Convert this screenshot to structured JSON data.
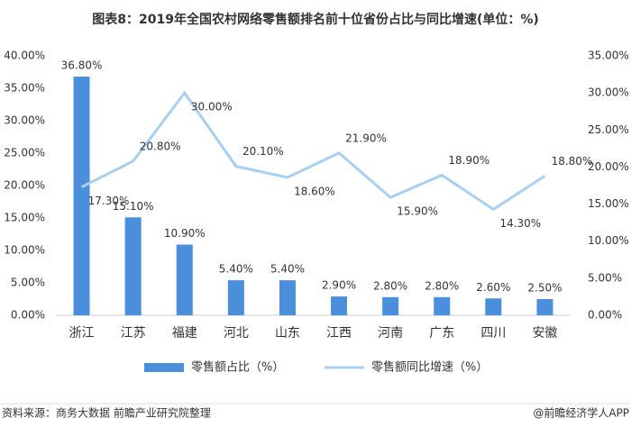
{
  "chart_data": {
    "type": "bar-line",
    "title": "图表8：2019年全国农村网络零售额排名前十位省份占比与同比增速(单位：%)",
    "source": "资料来源：商务大数据 前瞻产业研究院整理",
    "credit": "@前瞻经济学人APP",
    "categories": [
      "浙江",
      "江苏",
      "福建",
      "河北",
      "山东",
      "江西",
      "河南",
      "广东",
      "四川",
      "安徽"
    ],
    "series": [
      {
        "name": "零售额占比（%）",
        "type": "bar",
        "color": "#4a8fd9",
        "values": [
          36.8,
          15.1,
          10.9,
          5.4,
          5.4,
          2.9,
          2.8,
          2.8,
          2.6,
          2.5
        ],
        "value_labels": [
          "36.80%",
          "15.10%",
          "10.90%",
          "5.40%",
          "5.40%",
          "2.90%",
          "2.80%",
          "2.80%",
          "2.60%",
          "2.50%"
        ]
      },
      {
        "name": "零售额同比增速（%）",
        "type": "line",
        "axis": "y2",
        "color": "#a8cff0",
        "values": [
          17.3,
          20.8,
          30.0,
          20.1,
          18.6,
          21.9,
          15.9,
          18.9,
          14.3,
          18.8
        ],
        "value_labels": [
          "17.30%",
          "20.80%",
          "30.00%",
          "20.10%",
          "18.60%",
          "21.90%",
          "15.90%",
          "18.90%",
          "14.30%",
          "18.80%"
        ]
      }
    ],
    "ylim": [
      0,
      40
    ],
    "yticks": [
      {
        "value": 0,
        "label": "0.00%"
      },
      {
        "value": 5,
        "label": "5.00%"
      },
      {
        "value": 10,
        "label": "10.00%"
      },
      {
        "value": 15,
        "label": "15.00%"
      },
      {
        "value": 20,
        "label": "20.00%"
      },
      {
        "value": 25,
        "label": "25.00%"
      },
      {
        "value": 30,
        "label": "30.00%"
      },
      {
        "value": 35,
        "label": "35.00%"
      },
      {
        "value": 40,
        "label": "40.00%"
      }
    ],
    "y2lim": [
      0,
      35
    ],
    "y2ticks": [
      {
        "value": 0,
        "label": "0.00%"
      },
      {
        "value": 5,
        "label": "5.00%"
      },
      {
        "value": 10,
        "label": "10.00%"
      },
      {
        "value": 15,
        "label": "15.00%"
      },
      {
        "value": 20,
        "label": "20.00%"
      },
      {
        "value": 25,
        "label": "25.00%"
      },
      {
        "value": 30,
        "label": "30.00%"
      },
      {
        "value": 35,
        "label": "35.00%"
      }
    ]
  }
}
